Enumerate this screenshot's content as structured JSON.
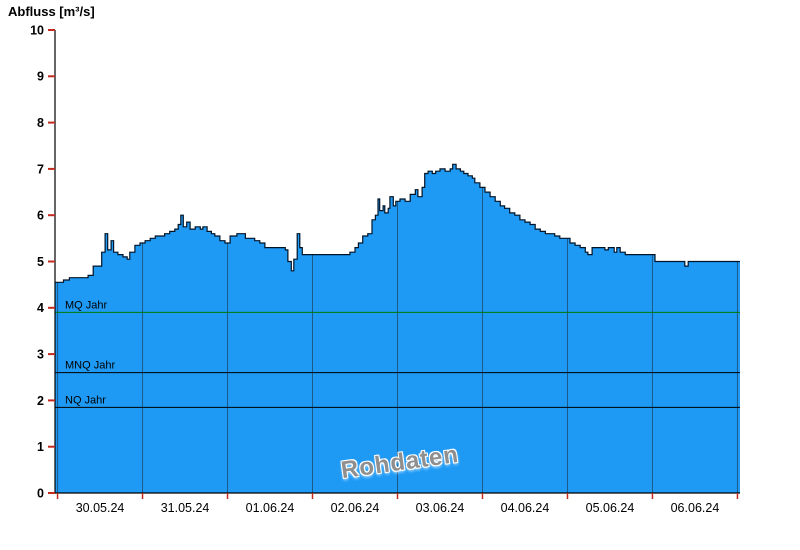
{
  "chart_data": {
    "type": "area",
    "title": "Abfluss [m³/s]",
    "watermark": "Rohdaten",
    "xlabel": "",
    "ylabel": "Abfluss [m³/s]",
    "ylim": [
      0,
      10
    ],
    "xlim": [
      -0.03,
      8.03
    ],
    "y_ticks": [
      0,
      1,
      2,
      3,
      4,
      5,
      6,
      7,
      8,
      9,
      10
    ],
    "x_tick_labels": [
      "30.05.24",
      "31.05.24",
      "01.06.24",
      "02.06.24",
      "03.06.24",
      "04.06.24",
      "05.06.24",
      "06.06.24"
    ],
    "grid": "vertical day boundaries, visible over filled area only",
    "legend_position": "none",
    "colors": {
      "fill": "#1E9AF5",
      "line": "#001428",
      "axis": "#000000",
      "tick": "#C22B1E",
      "grid": "#20242c",
      "mq_line": "#007A00",
      "mnq_line": "#000000",
      "nq_line": "#000000",
      "watermark": "#8f8f8f"
    },
    "reference_lines": [
      {
        "label": "MQ Jahr",
        "value": 3.9,
        "color": "#007A00"
      },
      {
        "label": "MNQ Jahr",
        "value": 2.6,
        "color": "#000000"
      },
      {
        "label": "NQ Jahr",
        "value": 1.85,
        "color": "#000000"
      }
    ],
    "series": [
      {
        "name": "Abfluss Rohdaten",
        "unit": "m³/s",
        "x_unit": "days since 30.05.24 00:00",
        "interpolation": "step-after",
        "points": [
          [
            -0.03,
            4.55
          ],
          [
            0.07,
            4.6
          ],
          [
            0.14,
            4.65
          ],
          [
            0.36,
            4.7
          ],
          [
            0.42,
            4.9
          ],
          [
            0.52,
            5.2
          ],
          [
            0.56,
            5.6
          ],
          [
            0.59,
            5.25
          ],
          [
            0.63,
            5.45
          ],
          [
            0.66,
            5.2
          ],
          [
            0.71,
            5.15
          ],
          [
            0.77,
            5.1
          ],
          [
            0.82,
            5.05
          ],
          [
            0.85,
            5.2
          ],
          [
            0.91,
            5.35
          ],
          [
            0.97,
            5.4
          ],
          [
            1.03,
            5.45
          ],
          [
            1.09,
            5.5
          ],
          [
            1.15,
            5.55
          ],
          [
            1.26,
            5.6
          ],
          [
            1.32,
            5.65
          ],
          [
            1.38,
            5.7
          ],
          [
            1.42,
            5.8
          ],
          [
            1.45,
            6.0
          ],
          [
            1.48,
            5.75
          ],
          [
            1.52,
            5.85
          ],
          [
            1.56,
            5.7
          ],
          [
            1.62,
            5.75
          ],
          [
            1.68,
            5.7
          ],
          [
            1.71,
            5.75
          ],
          [
            1.76,
            5.65
          ],
          [
            1.81,
            5.6
          ],
          [
            1.85,
            5.55
          ],
          [
            1.91,
            5.45
          ],
          [
            1.97,
            5.4
          ],
          [
            2.03,
            5.55
          ],
          [
            2.11,
            5.6
          ],
          [
            2.21,
            5.5
          ],
          [
            2.32,
            5.45
          ],
          [
            2.38,
            5.4
          ],
          [
            2.44,
            5.3
          ],
          [
            2.68,
            5.25
          ],
          [
            2.71,
            5.0
          ],
          [
            2.75,
            4.8
          ],
          [
            2.78,
            5.05
          ],
          [
            2.82,
            5.6
          ],
          [
            2.85,
            5.3
          ],
          [
            2.88,
            5.15
          ],
          [
            3.44,
            5.2
          ],
          [
            3.5,
            5.3
          ],
          [
            3.54,
            5.4
          ],
          [
            3.59,
            5.55
          ],
          [
            3.65,
            5.6
          ],
          [
            3.7,
            5.9
          ],
          [
            3.74,
            6.0
          ],
          [
            3.77,
            6.35
          ],
          [
            3.79,
            6.1
          ],
          [
            3.83,
            6.2
          ],
          [
            3.85,
            6.05
          ],
          [
            3.89,
            6.15
          ],
          [
            3.91,
            6.4
          ],
          [
            3.95,
            6.2
          ],
          [
            3.98,
            6.3
          ],
          [
            4.03,
            6.35
          ],
          [
            4.09,
            6.3
          ],
          [
            4.15,
            6.45
          ],
          [
            4.21,
            6.55
          ],
          [
            4.24,
            6.4
          ],
          [
            4.29,
            6.6
          ],
          [
            4.32,
            6.9
          ],
          [
            4.36,
            6.95
          ],
          [
            4.41,
            6.9
          ],
          [
            4.45,
            6.95
          ],
          [
            4.5,
            7.0
          ],
          [
            4.56,
            6.95
          ],
          [
            4.62,
            7.0
          ],
          [
            4.65,
            7.1
          ],
          [
            4.69,
            7.0
          ],
          [
            4.74,
            6.95
          ],
          [
            4.78,
            6.9
          ],
          [
            4.83,
            6.85
          ],
          [
            4.88,
            6.8
          ],
          [
            4.91,
            6.7
          ],
          [
            4.97,
            6.6
          ],
          [
            5.03,
            6.5
          ],
          [
            5.09,
            6.4
          ],
          [
            5.15,
            6.3
          ],
          [
            5.21,
            6.2
          ],
          [
            5.26,
            6.15
          ],
          [
            5.32,
            6.05
          ],
          [
            5.38,
            6.0
          ],
          [
            5.44,
            5.9
          ],
          [
            5.5,
            5.85
          ],
          [
            5.56,
            5.8
          ],
          [
            5.62,
            5.7
          ],
          [
            5.68,
            5.65
          ],
          [
            5.74,
            5.6
          ],
          [
            5.85,
            5.55
          ],
          [
            5.91,
            5.5
          ],
          [
            6.03,
            5.4
          ],
          [
            6.09,
            5.35
          ],
          [
            6.15,
            5.3
          ],
          [
            6.21,
            5.2
          ],
          [
            6.24,
            5.15
          ],
          [
            6.29,
            5.3
          ],
          [
            6.44,
            5.25
          ],
          [
            6.48,
            5.3
          ],
          [
            6.55,
            5.2
          ],
          [
            6.58,
            5.3
          ],
          [
            6.62,
            5.2
          ],
          [
            6.68,
            5.15
          ],
          [
            7.03,
            5.0
          ],
          [
            7.38,
            4.9
          ],
          [
            7.42,
            5.0
          ],
          [
            8.03,
            5.0
          ]
        ]
      }
    ]
  }
}
